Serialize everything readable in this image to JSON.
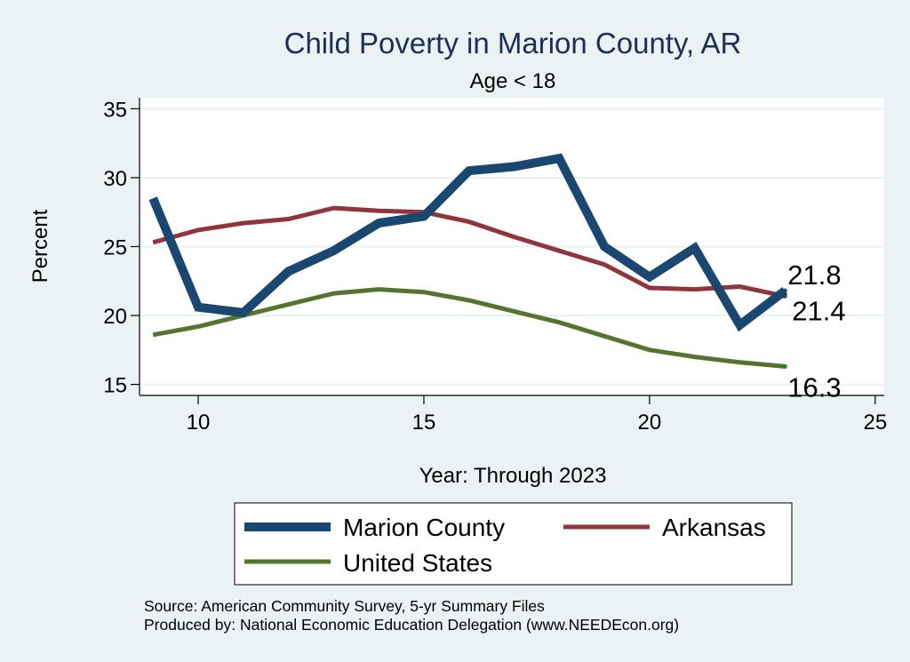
{
  "chart_data": {
    "type": "line",
    "title": "Child Poverty in Marion County, AR",
    "subtitle": "Age < 18",
    "xlabel": "Year: Through 2023",
    "ylabel": "Percent",
    "xlim": [
      8.7,
      25.2
    ],
    "ylim": [
      14.2,
      35.8
    ],
    "xticks": [
      10,
      15,
      20,
      25
    ],
    "yticks": [
      15,
      20,
      25,
      30,
      35
    ],
    "grid": true,
    "x": [
      9,
      10,
      11,
      12,
      13,
      14,
      15,
      16,
      17,
      18,
      19,
      20,
      21,
      22,
      23
    ],
    "series": [
      {
        "name": "Marion County",
        "color": "#1a476f",
        "width": 10,
        "values": [
          28.5,
          20.6,
          20.2,
          23.2,
          24.7,
          26.7,
          27.2,
          30.5,
          30.8,
          31.4,
          25.0,
          22.8,
          24.9,
          19.3,
          21.8
        ]
      },
      {
        "name": "Arkansas",
        "color": "#90353b",
        "width": 5,
        "values": [
          25.3,
          26.2,
          26.7,
          27.0,
          27.8,
          27.6,
          27.5,
          26.8,
          25.7,
          24.7,
          23.7,
          22.0,
          21.9,
          22.1,
          21.4
        ]
      },
      {
        "name": "United States",
        "color": "#55752f",
        "width": 5,
        "values": [
          18.6,
          19.2,
          20.0,
          20.8,
          21.6,
          21.9,
          21.7,
          21.1,
          20.3,
          19.5,
          18.5,
          17.5,
          17.0,
          16.6,
          16.3
        ]
      }
    ],
    "end_labels": [
      "21.8",
      "21.4",
      "16.3"
    ],
    "legend": [
      "Marion County",
      "Arkansas",
      "United States"
    ],
    "legend_position": "bottom"
  },
  "notes": {
    "source": "Source: American Community Survey, 5-yr Summary Files",
    "produced_by": "Produced by: National Economic Education Delegation (www.NEEDEcon.org)"
  }
}
